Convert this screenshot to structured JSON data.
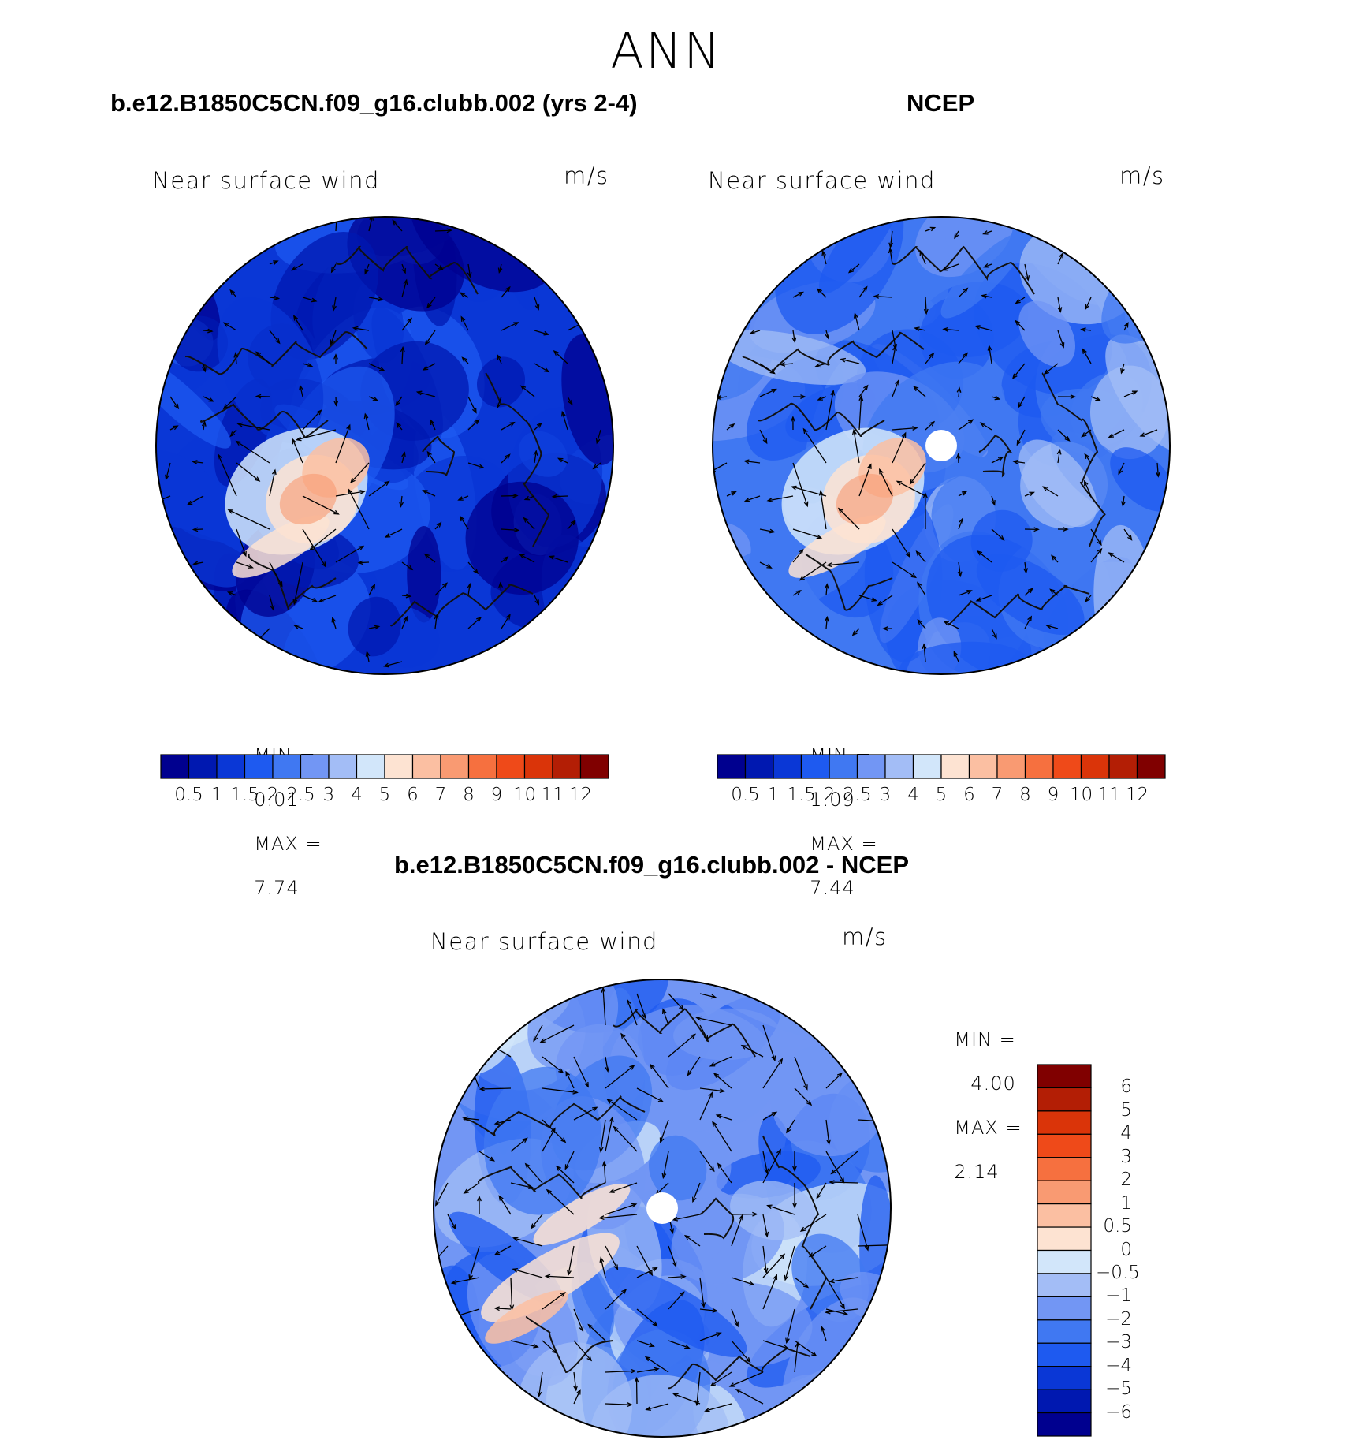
{
  "figure": {
    "season": "ANN"
  },
  "chart_data": [
    {
      "type": "heatmap",
      "projection": "north polar stereographic",
      "panel_title": "b.e12.B1850C5CN.f09_g16.clubb.002 (yrs 2-4)",
      "title": "Near surface wind",
      "units": "m/s",
      "min_label": "MIN =",
      "min_value": "0.01",
      "max_label": "MAX =",
      "max_value": "7.74",
      "colorbar_levels": [
        "0.5",
        "1",
        "1.5",
        "2",
        "2.5",
        "3",
        "4",
        "5",
        "6",
        "7",
        "8",
        "9",
        "10",
        "11",
        "12"
      ],
      "colorbar_colors": [
        "#00008f",
        "#0018b0",
        "#0a37d6",
        "#1e5af0",
        "#4078f2",
        "#7296f4",
        "#a3bdf6",
        "#d2e6fa",
        "#fde3d2",
        "#fbbfa2",
        "#f99a72",
        "#f6703f",
        "#ef4a19",
        "#da3409",
        "#b31e05",
        "#800000"
      ],
      "note": "Contour-filled vector field of near surface wind over the Arctic; low speeds dominate, higher speeds near Greenland/North Atlantic."
    },
    {
      "type": "heatmap",
      "projection": "north polar stereographic",
      "panel_title": "NCEP",
      "title": "Near surface wind",
      "units": "m/s",
      "min_label": "MIN =",
      "min_value": "1.09",
      "max_label": "MAX =",
      "max_value": "7.44",
      "colorbar_levels": [
        "0.5",
        "1",
        "1.5",
        "2",
        "2.5",
        "3",
        "4",
        "5",
        "6",
        "7",
        "8",
        "9",
        "10",
        "11",
        "12"
      ],
      "colorbar_colors": [
        "#00008f",
        "#0018b0",
        "#0a37d6",
        "#1e5af0",
        "#4078f2",
        "#7296f4",
        "#a3bdf6",
        "#d2e6fa",
        "#fde3d2",
        "#fbbfa2",
        "#f99a72",
        "#f6703f",
        "#ef4a19",
        "#da3409",
        "#b31e05",
        "#800000"
      ],
      "note": "Reanalysis near surface wind; missing data near pole shown as white disk."
    },
    {
      "type": "heatmap",
      "projection": "north polar stereographic",
      "panel_title": "b.e12.B1850C5CN.f09_g16.clubb.002 - NCEP",
      "title": "Near surface wind",
      "units": "m/s",
      "min_label": "MIN =",
      "min_value": "−4.00",
      "max_label": "MAX =",
      "max_value": "2.14",
      "colorbar_levels": [
        "6",
        "5",
        "4",
        "3",
        "2",
        "1",
        "0.5",
        "0",
        "−0.5",
        "−1",
        "−2",
        "−3",
        "−4",
        "−5",
        "−6"
      ],
      "colorbar_colors": [
        "#800000",
        "#b31e05",
        "#da3409",
        "#ef4a19",
        "#f6703f",
        "#f99a72",
        "#fbbfa2",
        "#fde3d2",
        "#d2e6fa",
        "#a3bdf6",
        "#7296f4",
        "#4078f2",
        "#1e5af0",
        "#0a37d6",
        "#0018b0",
        "#00008f"
      ],
      "note": "Model minus NCEP difference; mostly negative (blue) with positive anomalies near Greenland."
    }
  ]
}
